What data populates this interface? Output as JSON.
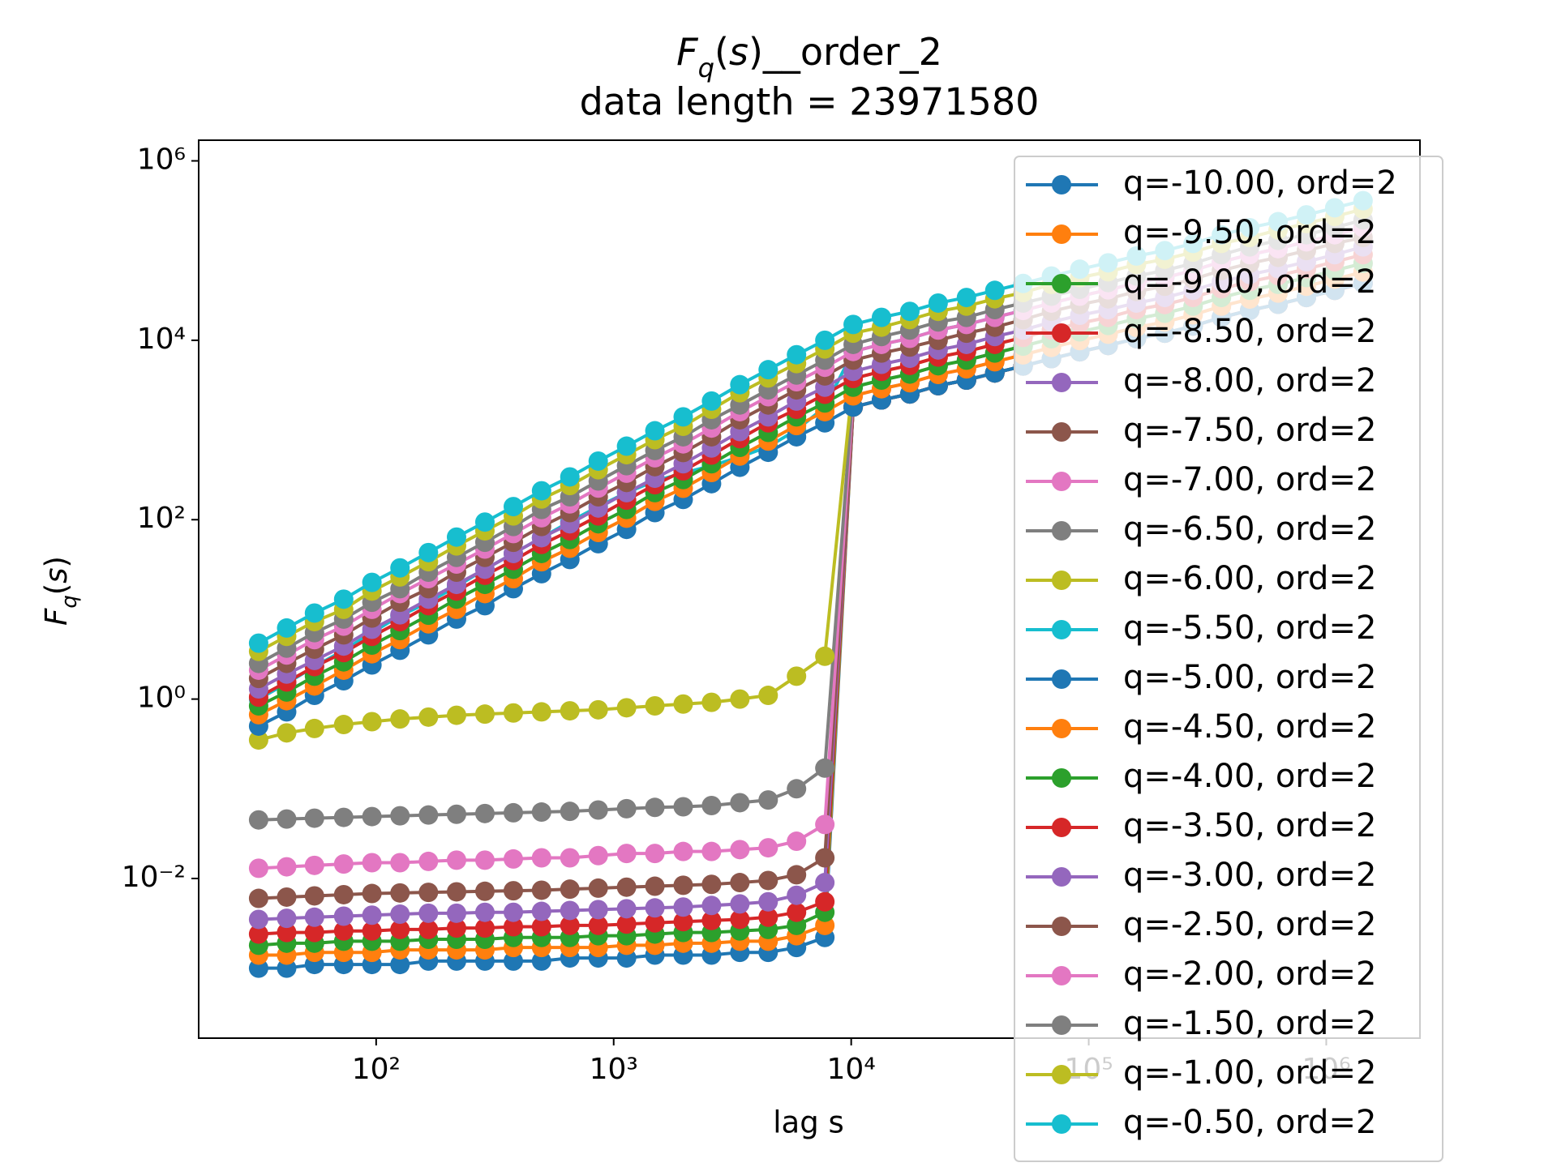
{
  "chart_data": {
    "type": "line",
    "log_x": true,
    "log_y": true,
    "legend": "upper right",
    "marker": "circle",
    "title": [
      "F",
      "q",
      "(",
      "s",
      ")__order_2"
    ],
    "subtitle": "data length = 23971580",
    "x_label": "lag s",
    "y_label": [
      "F",
      "q",
      "(",
      "s",
      ")"
    ],
    "xlim": [
      17.9,
      2480000
    ],
    "ylim": [
      0.000166,
      1700000
    ],
    "xticks": [
      {
        "value": 100,
        "label": "10²"
      },
      {
        "value": 1000,
        "label": "10³"
      },
      {
        "value": 10000,
        "label": "10⁴"
      },
      {
        "value": 100000,
        "label": "10⁵"
      },
      {
        "value": 1000000,
        "label": "10⁶"
      }
    ],
    "yticks": [
      {
        "value": 0.01,
        "label": "10⁻²"
      },
      {
        "value": 1,
        "label": "10⁰"
      },
      {
        "value": 100,
        "label": "10²"
      },
      {
        "value": 10000,
        "label": "10⁴"
      },
      {
        "value": 1000000,
        "label": "10⁶"
      }
    ],
    "x": [
      32,
      42,
      55,
      73,
      96,
      126,
      166,
      218,
      287,
      378,
      497,
      654,
      861,
      1133,
      1491,
      1962,
      2582,
      3398,
      4472,
      5885,
      7745,
      10192,
      13413,
      17652,
      23230,
      30571,
      40232,
      52946,
      69677,
      91695,
      120670,
      158800,
      208980,
      275020,
      361930,
      476300,
      626830,
      824910,
      1085600,
      1428700
    ],
    "series": [
      {
        "name": "q=-10.00, ord=2",
        "color": "#1f77b4",
        "values": [
          0.001,
          0.001,
          0.0011,
          0.0011,
          0.0011,
          0.0011,
          0.0012,
          0.0012,
          0.0012,
          0.0012,
          0.0012,
          0.0013,
          0.0013,
          0.0013,
          0.0014,
          0.0014,
          0.0014,
          0.0015,
          0.0015,
          0.0017,
          0.0022,
          1800,
          2160,
          2520,
          3120,
          3600,
          4320,
          5160,
          6240,
          7440,
          8760,
          10440,
          12000,
          14400,
          18000,
          21600,
          25200,
          30000,
          36000,
          43200
        ]
      },
      {
        "name": "q=-9.50, ord=2",
        "color": "#ff7f0e",
        "values": [
          0.0014,
          0.0014,
          0.0015,
          0.0015,
          0.0015,
          0.0016,
          0.0016,
          0.0016,
          0.0016,
          0.0017,
          0.0017,
          0.0017,
          0.0017,
          0.0018,
          0.0018,
          0.0019,
          0.0019,
          0.002,
          0.002,
          0.0023,
          0.003,
          1800,
          2160,
          2520,
          3120,
          3600,
          4320,
          5160,
          6240,
          7440,
          8760,
          10440,
          12000,
          14400,
          18000,
          21600,
          25200,
          30000,
          36000,
          43200
        ]
      },
      {
        "name": "q=-9.00, ord=2",
        "color": "#2ca02c",
        "values": [
          0.0018,
          0.0019,
          0.0019,
          0.002,
          0.002,
          0.002,
          0.0021,
          0.0021,
          0.0021,
          0.0022,
          0.0022,
          0.0022,
          0.0023,
          0.0023,
          0.0024,
          0.0025,
          0.0025,
          0.0026,
          0.0027,
          0.003,
          0.0042,
          1800,
          2160,
          2520,
          3120,
          3600,
          4320,
          5160,
          6240,
          7440,
          8760,
          10440,
          12000,
          14400,
          18000,
          21600,
          25200,
          30000,
          36000,
          43200
        ]
      },
      {
        "name": "q=-8.50, ord=2",
        "color": "#d62728",
        "values": [
          0.0024,
          0.0025,
          0.0025,
          0.0026,
          0.0026,
          0.0027,
          0.0027,
          0.0028,
          0.0028,
          0.0029,
          0.0029,
          0.003,
          0.003,
          0.0031,
          0.0032,
          0.0033,
          0.0034,
          0.0035,
          0.0037,
          0.0042,
          0.0055,
          1800,
          2160,
          2520,
          3120,
          3600,
          4320,
          5160,
          6240,
          7440,
          8760,
          10440,
          12000,
          14400,
          18000,
          21600,
          25200,
          30000,
          36000,
          43200
        ]
      },
      {
        "name": "q=-8.00, ord=2",
        "color": "#9467bd",
        "values": [
          0.0035,
          0.0036,
          0.0037,
          0.0038,
          0.0039,
          0.004,
          0.0041,
          0.0041,
          0.0042,
          0.0042,
          0.0043,
          0.0044,
          0.0045,
          0.0046,
          0.0047,
          0.0048,
          0.005,
          0.0052,
          0.0055,
          0.0065,
          0.009,
          1800,
          2160,
          2520,
          3120,
          3600,
          4320,
          5160,
          6240,
          7440,
          8760,
          10440,
          12000,
          14400,
          18000,
          21600,
          25200,
          30000,
          36000,
          43200
        ]
      },
      {
        "name": "q=-7.50, ord=2",
        "color": "#8c564b",
        "values": [
          0.006,
          0.0062,
          0.0064,
          0.0066,
          0.0068,
          0.0069,
          0.007,
          0.0071,
          0.0072,
          0.0073,
          0.0074,
          0.0076,
          0.0078,
          0.008,
          0.0082,
          0.0084,
          0.0086,
          0.009,
          0.0095,
          0.011,
          0.017,
          1800,
          2160,
          2520,
          3120,
          3600,
          4320,
          5160,
          6240,
          7440,
          8760,
          10440,
          12000,
          14400,
          18000,
          21600,
          25200,
          30000,
          36000,
          43200
        ]
      },
      {
        "name": "q=-7.00, ord=2",
        "color": "#e377c2",
        "values": [
          0.013,
          0.0135,
          0.014,
          0.0145,
          0.015,
          0.015,
          0.0155,
          0.016,
          0.016,
          0.0165,
          0.017,
          0.017,
          0.018,
          0.019,
          0.019,
          0.02,
          0.02,
          0.021,
          0.022,
          0.026,
          0.04,
          2400,
          2880,
          3360,
          4160,
          4800,
          5760,
          6880,
          8320,
          9920,
          11680,
          13920,
          16000,
          19200,
          24000,
          28800,
          33600,
          40000,
          48000,
          57600
        ]
      },
      {
        "name": "q=-6.50, ord=2",
        "color": "#7f7f7f",
        "values": [
          0.045,
          0.046,
          0.047,
          0.048,
          0.049,
          0.05,
          0.051,
          0.052,
          0.053,
          0.054,
          0.055,
          0.056,
          0.058,
          0.06,
          0.062,
          0.063,
          0.065,
          0.07,
          0.075,
          0.1,
          0.17,
          3000,
          3600,
          4200,
          5200,
          6000,
          7200,
          8600,
          10400,
          12400,
          14600,
          17400,
          20000,
          24000,
          30000,
          36000,
          42000,
          50000,
          60000,
          72000
        ]
      },
      {
        "name": "q=-6.00, ord=2",
        "color": "#bcbd22",
        "values": [
          0.35,
          0.42,
          0.47,
          0.52,
          0.56,
          0.6,
          0.63,
          0.66,
          0.68,
          0.7,
          0.72,
          0.74,
          0.76,
          0.8,
          0.84,
          0.88,
          0.92,
          1.0,
          1.1,
          1.8,
          3.0,
          3750,
          4500,
          5250,
          6500,
          7500,
          9000,
          10750,
          13000,
          15500,
          18000,
          22000,
          25000,
          30000,
          37500,
          45000,
          52500,
          62500,
          75000,
          90000
        ]
      },
      {
        "name": "q=-5.50, ord=2",
        "color": "#17becf",
        "values": [
          1.0,
          1.5,
          2.3,
          3.5,
          5.5,
          8.5,
          12,
          18,
          28,
          42,
          63,
          95,
          140,
          200,
          270,
          330,
          400,
          500,
          650,
          1000,
          1800,
          7500,
          9000,
          10500,
          13000,
          15000,
          18000,
          21500,
          26000,
          31000,
          36500,
          43500,
          50000,
          60000,
          75000,
          90000,
          105000,
          125000,
          150000,
          180000
        ]
      },
      {
        "name": "q=-5.00, ord=2",
        "color": "#1f77b4",
        "values": [
          0.5,
          0.72,
          1.1,
          1.6,
          2.4,
          3.5,
          5.2,
          7.8,
          11,
          17,
          25,
          36,
          54,
          78,
          120,
          168,
          252,
          384,
          564,
          840,
          1200,
          1800,
          2160,
          2520,
          3120,
          3600,
          4320,
          5160,
          6240,
          7440,
          8760,
          10440,
          12000,
          14400,
          18000,
          21600,
          25200,
          30000,
          36000,
          43200
        ]
      },
      {
        "name": "q=-4.50, ord=2",
        "color": "#ff7f0e",
        "values": [
          0.67,
          0.96,
          1.4,
          2.1,
          3.2,
          4.6,
          6.9,
          10,
          15,
          22,
          34,
          48,
          72,
          104,
          160,
          224,
          336,
          512,
          752,
          1120,
          1600,
          2400,
          2880,
          3360,
          4160,
          4800,
          5760,
          6880,
          8320,
          9920,
          11680,
          13920,
          16000,
          19200,
          24000,
          28800,
          33600,
          40000,
          48000,
          57600
        ]
      },
      {
        "name": "q=-4.00, ord=2",
        "color": "#2ca02c",
        "values": [
          0.84,
          1.2,
          1.8,
          2.6,
          4,
          5.8,
          8.6,
          13,
          19,
          28,
          42,
          60,
          90,
          130,
          200,
          280,
          420,
          640,
          940,
          1400,
          2000,
          3000,
          3600,
          4200,
          5200,
          6000,
          7200,
          8600,
          10400,
          12400,
          14600,
          17400,
          20000,
          24000,
          30000,
          36000,
          42000,
          50000,
          60000,
          72000
        ]
      },
      {
        "name": "q=-3.50, ord=2",
        "color": "#d62728",
        "values": [
          1.05,
          1.55,
          2.3,
          3.3,
          5,
          7.3,
          11,
          16,
          24,
          35,
          53,
          75,
          110,
          165,
          245,
          350,
          525,
          800,
          1200,
          1700,
          2500,
          3750,
          4500,
          5250,
          6500,
          7500,
          9000,
          10750,
          13000,
          15500,
          18000,
          22000,
          25000,
          30000,
          37500,
          45000,
          52500,
          62500,
          75000,
          90000
        ]
      },
      {
        "name": "q=-3.00, ord=2",
        "color": "#9467bd",
        "values": [
          1.3,
          1.9,
          2.7,
          3.9,
          6,
          8.7,
          13,
          19,
          28,
          42,
          63,
          90,
          135,
          200,
          290,
          420,
          630,
          960,
          1400,
          2100,
          3000,
          4500,
          5400,
          6300,
          7800,
          9000,
          11000,
          13000,
          16000,
          19000,
          22000,
          26000,
          30000,
          36000,
          45000,
          54000,
          63000,
          75000,
          90000,
          110000
        ]
      },
      {
        "name": "q=-2.50, ord=2",
        "color": "#8c564b",
        "values": [
          1.7,
          2.5,
          3.6,
          5.2,
          8,
          12,
          17,
          26,
          38,
          56,
          84,
          120,
          180,
          260,
          390,
          560,
          840,
          1300,
          1900,
          2800,
          4000,
          6000,
          7200,
          8400,
          10000,
          12000,
          14000,
          17000,
          21000,
          25000,
          29000,
          35000,
          40000,
          48000,
          60000,
          72000,
          84000,
          100000,
          120000,
          140000
        ]
      },
      {
        "name": "q=-2.00, ord=2",
        "color": "#e377c2",
        "values": [
          2.1,
          3.1,
          4.6,
          6.5,
          10,
          15,
          22,
          32,
          47,
          70,
          105,
          150,
          225,
          330,
          490,
          700,
          1050,
          1600,
          2350,
          3450,
          5000,
          7500,
          9000,
          10500,
          13000,
          15000,
          18000,
          21500,
          26000,
          31000,
          36500,
          43500,
          50000,
          60000,
          75000,
          90000,
          105000,
          125000,
          150000,
          180000
        ]
      },
      {
        "name": "q=-1.50, ord=2",
        "color": "#7f7f7f",
        "values": [
          2.5,
          3.7,
          5.5,
          7.8,
          12,
          17,
          26,
          38,
          56,
          84,
          130,
          180,
          270,
          400,
          590,
          840,
          1300,
          1900,
          2800,
          4100,
          6000,
          9000,
          11000,
          13000,
          16000,
          18000,
          22000,
          26000,
          31000,
          37000,
          44000,
          52000,
          60000,
          72000,
          90000,
          110000,
          130000,
          150000,
          180000,
          220000
        ]
      },
      {
        "name": "q=-1.00, ord=2",
        "color": "#bcbd22",
        "values": [
          3.4,
          5,
          7.3,
          10,
          16,
          23,
          34,
          51,
          75,
          110,
          170,
          240,
          360,
          530,
          780,
          1100,
          1700,
          2600,
          3800,
          5500,
          8000,
          12000,
          14000,
          17000,
          21000,
          24000,
          29000,
          34000,
          42000,
          50000,
          58000,
          70000,
          80000,
          96000,
          120000,
          140000,
          170000,
          200000,
          240000,
          290000
        ]
      },
      {
        "name": "q=-0.50, ord=2",
        "color": "#17becf",
        "values": [
          4.2,
          6.2,
          9.1,
          13,
          20,
          29,
          43,
          64,
          94,
          140,
          210,
          300,
          450,
          660,
          980,
          1400,
          2100,
          3200,
          4700,
          6900,
          10000,
          15000,
          18000,
          21000,
          26000,
          30000,
          36000,
          43000,
          52000,
          62000,
          73000,
          87000,
          100000,
          120000,
          150000,
          180000,
          210000,
          250000,
          300000,
          360000
        ]
      }
    ]
  }
}
